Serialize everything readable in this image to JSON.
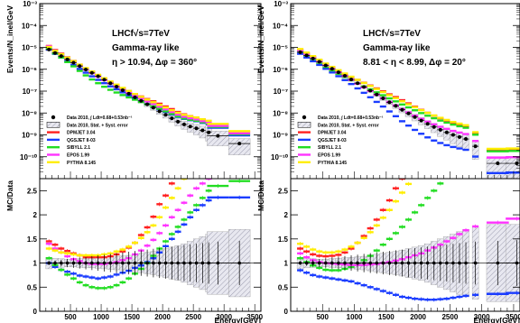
{
  "chart_data": [
    {
      "type": "scatter",
      "title_lines": [
        "LHCf√s=7TeV",
        "Gamma-ray like",
        "η > 10.94, Δφ = 360°"
      ],
      "top": {
        "ylabel": "Events/N_inel/GeV",
        "yscale": "log",
        "ylim": [
          1e-11,
          0.001
        ],
        "yticks": [
          "10⁻¹⁰",
          "10⁻⁹",
          "10⁻⁸",
          "10⁻⁷",
          "10⁻⁶",
          "10⁻⁵",
          "10⁻⁴",
          "10⁻³"
        ]
      },
      "ratio": {
        "ylabel": "MC/Data",
        "ylim": [
          0,
          2.75
        ],
        "yticks": [
          "0",
          "0.5",
          "1",
          "1.5",
          "2",
          "2.5"
        ]
      },
      "xlabel": "Energy[GeV]",
      "xlim": [
        0,
        3600
      ],
      "xticks": [
        "500",
        "1000",
        "1500",
        "2000",
        "2500",
        "3000",
        "3500"
      ],
      "legend": [
        {
          "label": "Data 2010, ∫ Ldt=0.68+0.53nb⁻¹",
          "kind": "data",
          "color": "#000000"
        },
        {
          "label": "Data 2010, Stat. + Syst. error",
          "kind": "band",
          "color": "#9a9a9a"
        },
        {
          "label": "DPMJET 3.04",
          "kind": "line",
          "color": "#ff2020"
        },
        {
          "label": "QGSJET II-03",
          "kind": "line",
          "color": "#1a3cff"
        },
        {
          "label": "SIBYLL 2.1",
          "kind": "line",
          "color": "#22dd22"
        },
        {
          "label": "EPOS 1.99",
          "kind": "line",
          "color": "#ff33ff"
        },
        {
          "label": "PYTHIA 8.145",
          "kind": "line",
          "color": "#ffee00"
        }
      ],
      "data": {
        "x": [
          150,
          250,
          350,
          450,
          550,
          650,
          750,
          850,
          950,
          1050,
          1150,
          1250,
          1350,
          1450,
          1550,
          1650,
          1750,
          1850,
          1950,
          2050,
          2150,
          2250,
          2350,
          2450,
          2550,
          2650,
          2750,
          2900,
          3250
        ],
        "y": [
          8e-06,
          5.5e-06,
          4e-06,
          2.8e-06,
          2e-06,
          1.4e-06,
          9.7e-07,
          6.8e-07,
          4.8e-07,
          3.3e-07,
          2.3e-07,
          1.6e-07,
          1.1e-07,
          7.6e-08,
          5.2e-08,
          3.6e-08,
          2.5e-08,
          1.75e-08,
          1.2e-08,
          8.3e-09,
          5.7e-09,
          4e-09,
          3e-09,
          2.4e-09,
          2e-09,
          1.6e-09,
          1.3e-09,
          9e-10,
          4e-10
        ],
        "band_rel": [
          0.12,
          0.1,
          0.09,
          0.08,
          0.08,
          0.09,
          0.1,
          0.1,
          0.11,
          0.12,
          0.13,
          0.14,
          0.15,
          0.16,
          0.18,
          0.2,
          0.22,
          0.24,
          0.27,
          0.3,
          0.33,
          0.36,
          0.4,
          0.45,
          0.5,
          0.55,
          0.6,
          0.65,
          0.7
        ]
      },
      "ratios": {
        "DPMJET 3.04": [
          1.45,
          1.38,
          1.3,
          1.25,
          1.2,
          1.16,
          1.12,
          1.12,
          1.12,
          1.12,
          1.14,
          1.18,
          1.24,
          1.32,
          1.42,
          1.58,
          1.74,
          1.96,
          2.22,
          2.4,
          2.65,
          2.8,
          2.9,
          3.0,
          3.1,
          3.2,
          3.3,
          3.4,
          3.5
        ],
        "QGSJET II-03": [
          1.0,
          0.92,
          0.86,
          0.82,
          0.78,
          0.74,
          0.72,
          0.7,
          0.68,
          0.7,
          0.72,
          0.76,
          0.8,
          0.84,
          0.9,
          0.95,
          1.02,
          1.1,
          1.22,
          1.35,
          1.5,
          1.65,
          1.8,
          1.95,
          2.1,
          2.2,
          2.3,
          2.36,
          2.36
        ],
        "SIBYLL 2.1": [
          1.1,
          0.96,
          0.86,
          0.76,
          0.68,
          0.6,
          0.54,
          0.5,
          0.48,
          0.48,
          0.5,
          0.54,
          0.6,
          0.68,
          0.78,
          0.88,
          1.0,
          1.15,
          1.3,
          1.45,
          1.6,
          1.75,
          1.9,
          2.05,
          2.2,
          2.35,
          2.5,
          2.6,
          2.7
        ],
        "EPOS 1.99": [
          1.4,
          1.3,
          1.22,
          1.14,
          1.08,
          1.04,
          1.0,
          0.98,
          0.98,
          0.98,
          1.0,
          1.02,
          1.06,
          1.1,
          1.18,
          1.26,
          1.36,
          1.48,
          1.62,
          1.78,
          1.95,
          2.1,
          2.25,
          2.4,
          2.55,
          2.65,
          2.75,
          2.85,
          2.95
        ],
        "PYTHIA 8.145": [
          1.3,
          1.26,
          1.22,
          1.2,
          1.18,
          1.16,
          1.16,
          1.16,
          1.16,
          1.18,
          1.2,
          1.24,
          1.28,
          1.34,
          1.42,
          1.52,
          1.64,
          1.78,
          1.95,
          2.15,
          2.35,
          2.55,
          2.75,
          2.95,
          3.1,
          3.25,
          3.4,
          3.55,
          3.7
        ]
      }
    },
    {
      "type": "scatter",
      "title_lines": [
        "LHCf√s=7TeV",
        "Gamma-ray like",
        "8.81 < η < 8.99, Δφ = 20°"
      ],
      "top": {
        "ylabel": "Events/N_inel/GeV",
        "yscale": "log",
        "ylim": [
          1e-11,
          0.001
        ],
        "yticks": [
          "10⁻¹⁰",
          "10⁻⁹",
          "10⁻⁸",
          "10⁻⁷",
          "10⁻⁶",
          "10⁻⁵",
          "10⁻⁴",
          "10⁻³"
        ]
      },
      "ratio": {
        "ylabel": "MC/Data",
        "ylim": [
          0,
          2.75
        ],
        "yticks": [
          "0",
          "0.5",
          "1",
          "1.5",
          "2",
          "2.5"
        ]
      },
      "xlabel": "Energy[GeV]",
      "xlim": [
        0,
        3600
      ],
      "xticks": [
        "500",
        "1000",
        "1500",
        "2000",
        "2500",
        "3000",
        "3500"
      ],
      "legend": [
        {
          "label": "Data 2010, ∫ Ldt=0.68+0.53nb⁻¹",
          "kind": "data",
          "color": "#000000"
        },
        {
          "label": "Data 2010, Stat. + Syst. error",
          "kind": "band",
          "color": "#9a9a9a"
        },
        {
          "label": "DPMJET 3.04",
          "kind": "line",
          "color": "#ff2020"
        },
        {
          "label": "QGSJET II-03",
          "kind": "line",
          "color": "#1a3cff"
        },
        {
          "label": "SIBYLL 2.1",
          "kind": "line",
          "color": "#22dd22"
        },
        {
          "label": "EPOS 1.99",
          "kind": "line",
          "color": "#ff33ff"
        },
        {
          "label": "PYTHIA 8.145",
          "kind": "line",
          "color": "#ffee00"
        }
      ],
      "data": {
        "x": [
          150,
          250,
          350,
          450,
          550,
          650,
          750,
          850,
          950,
          1050,
          1150,
          1250,
          1350,
          1450,
          1550,
          1650,
          1750,
          1850,
          1950,
          2050,
          2150,
          2250,
          2350,
          2450,
          2550,
          2650,
          2750,
          2900,
          3250,
          3550
        ],
        "y": [
          6e-06,
          4.3e-06,
          3.1e-06,
          2.2e-06,
          1.5e-06,
          1.05e-06,
          7.3e-07,
          5e-07,
          3.4e-07,
          2.3e-07,
          1.55e-07,
          1.05e-07,
          7e-08,
          4.7e-08,
          3.1e-08,
          2.1e-08,
          1.4e-08,
          9.5e-09,
          6.5e-09,
          4.5e-09,
          3.2e-09,
          2.3e-09,
          1.7e-09,
          1.3e-09,
          1e-09,
          8e-10,
          6.5e-10,
          3e-10,
          5e-11,
          5e-11
        ],
        "band_rel": [
          0.12,
          0.1,
          0.09,
          0.08,
          0.08,
          0.09,
          0.1,
          0.11,
          0.12,
          0.13,
          0.14,
          0.16,
          0.18,
          0.2,
          0.22,
          0.24,
          0.27,
          0.3,
          0.33,
          0.36,
          0.4,
          0.45,
          0.5,
          0.55,
          0.6,
          0.65,
          0.7,
          0.75,
          0.8,
          0.8
        ]
      },
      "ratios": {
        "DPMJET 3.04": [
          1.3,
          1.24,
          1.18,
          1.15,
          1.14,
          1.15,
          1.17,
          1.22,
          1.3,
          1.42,
          1.56,
          1.72,
          1.9,
          2.1,
          2.3,
          2.55,
          2.75,
          2.9,
          3.0,
          3.1,
          3.2,
          3.3,
          3.4,
          3.5,
          3.6,
          3.7,
          3.8,
          3.9,
          4.0,
          4.1
        ],
        "QGSJET II-03": [
          0.85,
          0.8,
          0.75,
          0.72,
          0.7,
          0.68,
          0.66,
          0.64,
          0.62,
          0.58,
          0.54,
          0.5,
          0.46,
          0.42,
          0.38,
          0.34,
          0.3,
          0.28,
          0.26,
          0.25,
          0.24,
          0.24,
          0.25,
          0.26,
          0.28,
          0.3,
          0.32,
          0.34,
          0.36,
          0.38
        ],
        "SIBYLL 2.1": [
          1.1,
          1.02,
          0.95,
          0.9,
          0.86,
          0.85,
          0.85,
          0.88,
          0.92,
          0.98,
          1.06,
          1.15,
          1.26,
          1.38,
          1.5,
          1.62,
          1.75,
          1.9,
          2.05,
          2.2,
          2.35,
          2.5,
          2.65,
          2.8,
          2.95,
          3.1,
          3.25,
          3.4,
          3.55,
          3.7
        ],
        "EPOS 1.99": [
          1.2,
          1.12,
          1.06,
          1.02,
          1.0,
          0.99,
          0.98,
          0.97,
          0.96,
          0.96,
          0.96,
          0.97,
          0.98,
          1.0,
          1.02,
          1.05,
          1.08,
          1.12,
          1.16,
          1.2,
          1.26,
          1.32,
          1.38,
          1.45,
          1.52,
          1.6,
          1.68,
          1.76,
          1.84,
          1.92
        ],
        "PYTHIA 8.145": [
          1.4,
          1.34,
          1.28,
          1.24,
          1.22,
          1.22,
          1.24,
          1.28,
          1.34,
          1.42,
          1.52,
          1.64,
          1.78,
          1.94,
          2.1,
          2.28,
          2.46,
          2.64,
          2.82,
          3.0,
          3.18,
          3.36,
          3.54,
          3.72,
          3.9,
          4.08,
          4.26,
          4.44,
          4.62,
          4.8
        ]
      }
    }
  ]
}
